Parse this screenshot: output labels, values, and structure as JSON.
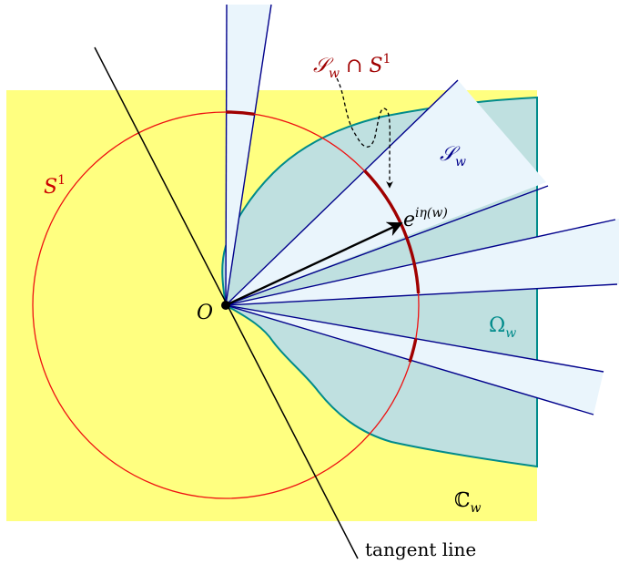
{
  "labels": {
    "origin": "O",
    "circle": "S",
    "circle_sup": "1",
    "sector": "𝒮",
    "sector_sub": "w",
    "intersection_sector": "𝒮",
    "intersection_sub": "w",
    "intersection_cap": " ∩ ",
    "intersection_circle": "S",
    "intersection_sup": "1",
    "exp_base": "e",
    "exp_power": "iη(w)",
    "omega": "Ω",
    "omega_sub": "w",
    "plane": "ℂ",
    "plane_sub": "w",
    "tangent": "tangent line"
  },
  "colors": {
    "plane_fill": "#ffff80",
    "omega_fill": "#bfe0e0",
    "omega_stroke": "#008b8b",
    "sector_fill": "#eaf5fc",
    "sector_stroke": "#00008b",
    "circle_stroke": "#ee1111",
    "arc_highlight": "#a00000",
    "label_red": "#cc0000",
    "label_teal": "#008b8b",
    "label_navy": "#00008b"
  }
}
